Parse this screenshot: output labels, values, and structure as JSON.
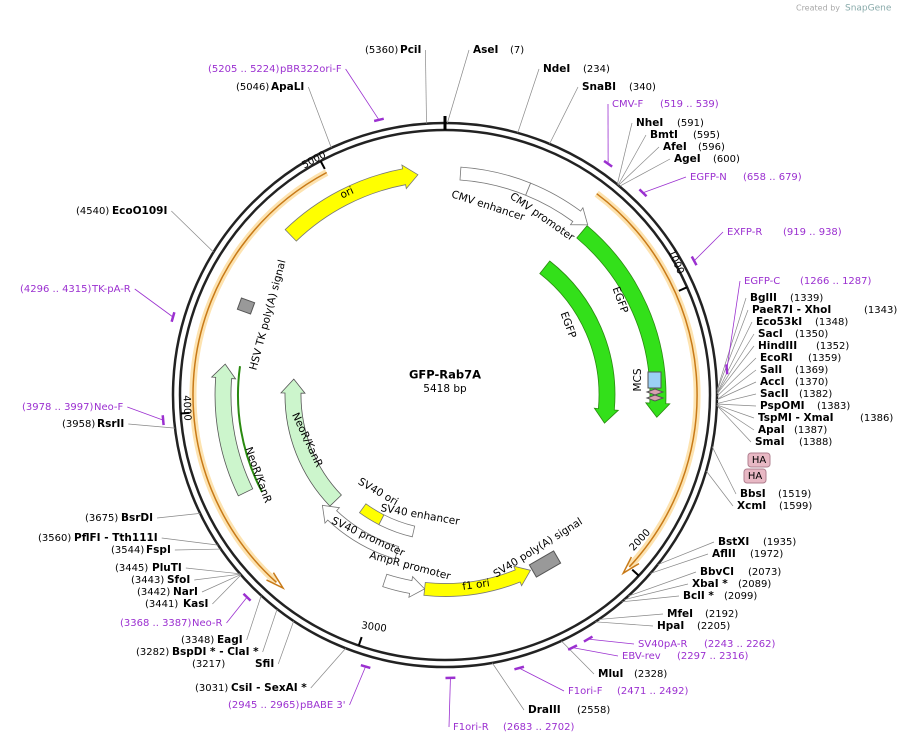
{
  "header": {
    "credit": "Created by",
    "brand": "SnapGene"
  },
  "plasmid": {
    "name": "GFP-Rab7A",
    "size": "5418 bp"
  },
  "ruler": [
    "1000",
    "2000",
    "3000",
    "4000",
    "5000"
  ],
  "features": [
    {
      "label": "ori"
    },
    {
      "label": "CMV enhancer"
    },
    {
      "label": "CMV promoter"
    },
    {
      "label": "EGFP"
    },
    {
      "label": "EGFP"
    },
    {
      "label": "MCS"
    },
    {
      "label": "SV40 poly(A) signal"
    },
    {
      "label": "f1 ori"
    },
    {
      "label": "AmpR promoter"
    },
    {
      "label": "SV40 promoter"
    },
    {
      "label": "SV40 enhancer"
    },
    {
      "label": "SV40 ori"
    },
    {
      "label": "NeoR/KanR"
    },
    {
      "label": "NeoR/KanR"
    },
    {
      "label": "HSV TK poly(A) signal"
    }
  ],
  "tags": [
    "HA",
    "HA"
  ],
  "sites": [
    {
      "name": "PciI",
      "position": "(5360)"
    },
    {
      "name": "AseI",
      "position": "(7)"
    },
    {
      "name": "NdeI",
      "position": "(234)"
    },
    {
      "name": "SnaBI",
      "position": "(340)"
    },
    {
      "name": "NheI",
      "position": "(591)"
    },
    {
      "name": "BmtI",
      "position": "(595)"
    },
    {
      "name": "AfeI",
      "position": "(596)"
    },
    {
      "name": "AgeI",
      "position": "(600)"
    },
    {
      "name": "BglII",
      "position": "(1339)"
    },
    {
      "name": "PaeR7I - XhoI",
      "position": "(1343)"
    },
    {
      "name": "Eco53kI",
      "position": "(1348)"
    },
    {
      "name": "SacI",
      "position": "(1350)"
    },
    {
      "name": "HindIII",
      "position": "(1352)"
    },
    {
      "name": "EcoRI",
      "position": "(1359)"
    },
    {
      "name": "SalI",
      "position": "(1369)"
    },
    {
      "name": "AccI",
      "position": "(1370)"
    },
    {
      "name": "SacII",
      "position": "(1382)"
    },
    {
      "name": "PspOMI",
      "position": "(1383)"
    },
    {
      "name": "TspMI - XmaI",
      "position": "(1386)"
    },
    {
      "name": "ApaI",
      "position": "(1387)"
    },
    {
      "name": "SmaI",
      "position": "(1388)"
    },
    {
      "name": "BbsI",
      "position": "(1519)"
    },
    {
      "name": "XcmI",
      "position": "(1599)"
    },
    {
      "name": "BstXI",
      "position": "(1935)"
    },
    {
      "name": "AflII",
      "position": "(1972)"
    },
    {
      "name": "BbvCI",
      "position": "(2073)"
    },
    {
      "name": "XbaI *",
      "position": "(2089)"
    },
    {
      "name": "BclI *",
      "position": "(2099)"
    },
    {
      "name": "MfeI",
      "position": "(2192)"
    },
    {
      "name": "HpaI",
      "position": "(2205)"
    },
    {
      "name": "MluI",
      "position": "(2328)"
    },
    {
      "name": "DraIII",
      "position": "(2558)"
    },
    {
      "name": "CsiI - SexAI *",
      "position": "(3031)"
    },
    {
      "name": "SfiI",
      "position": "(3217)"
    },
    {
      "name": "BspDI * - ClaI *",
      "position": "(3282)"
    },
    {
      "name": "EagI",
      "position": "(3348)"
    },
    {
      "name": "KasI",
      "position": "(3441)"
    },
    {
      "name": "NarI",
      "position": "(3442)"
    },
    {
      "name": "SfoI",
      "position": "(3443)"
    },
    {
      "name": "PluTI",
      "position": "(3445)"
    },
    {
      "name": "FspI",
      "position": "(3544)"
    },
    {
      "name": "PflFI - Tth111I",
      "position": "(3560)"
    },
    {
      "name": "BsrDI",
      "position": "(3675)"
    },
    {
      "name": "RsrII",
      "position": "(3958)"
    },
    {
      "name": "EcoO109I",
      "position": "(4540)"
    },
    {
      "name": "ApaLI",
      "position": "(5046)"
    }
  ],
  "primers": [
    {
      "name": "pBR322ori-F",
      "range": "(5205 .. 5224)"
    },
    {
      "name": "CMV-F",
      "range": "(519 .. 539)"
    },
    {
      "name": "EGFP-N",
      "range": "(658 .. 679)"
    },
    {
      "name": "EXFP-R",
      "range": "(919 .. 938)"
    },
    {
      "name": "EGFP-C",
      "range": "(1266 .. 1287)"
    },
    {
      "name": "SV40pA-R",
      "range": "(2243 .. 2262)"
    },
    {
      "name": "EBV-rev",
      "range": "(2297 .. 2316)"
    },
    {
      "name": "F1ori-F",
      "range": "(2471 .. 2492)"
    },
    {
      "name": "F1ori-R",
      "range": "(2683 .. 2702)"
    },
    {
      "name": "pBABE 3'",
      "range": "(2945 .. 2965)"
    },
    {
      "name": "Neo-R",
      "range": "(3368 .. 3387)"
    },
    {
      "name": "Neo-F",
      "range": "(3978 .. 3997)"
    },
    {
      "name": "TK-pA-R",
      "range": "(4296 .. 4315)"
    }
  ]
}
